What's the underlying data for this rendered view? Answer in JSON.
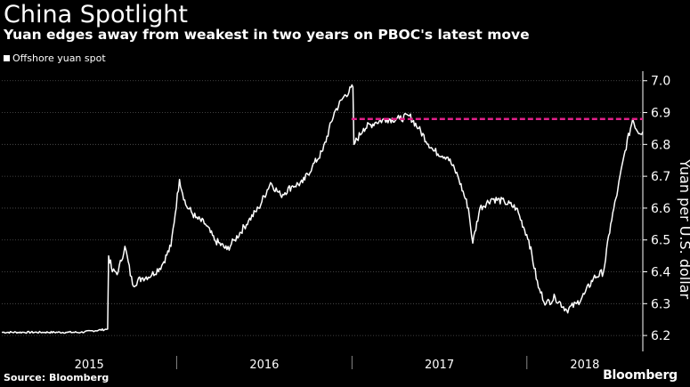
{
  "header": {
    "title": "China Spotlight",
    "subtitle": "Yuan edges away from weakest in two years on PBOC's latest move"
  },
  "footer": {
    "source": "Source: Bloomberg",
    "brand": "Bloomberg"
  },
  "colors": {
    "background": "#000000",
    "series": "#ffffff",
    "reference_line": "#e0218a",
    "grid": "#555555"
  },
  "chart_data": {
    "type": "line",
    "title": "China Spotlight",
    "subtitle": "Yuan edges away from weakest in two years on PBOC's latest move",
    "ylabel": "Yuan per U.S. dollar",
    "xlabel": "",
    "ylim": [
      6.15,
      7.03
    ],
    "yticks": [
      6.2,
      6.3,
      6.4,
      6.5,
      6.6,
      6.7,
      6.8,
      6.9,
      7.0
    ],
    "ytick_labels": [
      "6.2",
      "6.3",
      "6.4",
      "6.5",
      "6.6",
      "6.7",
      "6.8",
      "6.9",
      "7.0"
    ],
    "xlim": [
      "2015-01-01",
      "2018-08-31"
    ],
    "xtick_labels": [
      "2015",
      "2016",
      "2017",
      "2018"
    ],
    "y_axis_side": "right",
    "grid": "horizontal dotted",
    "legend_position": "top-left",
    "reference_line": {
      "style": "dashed",
      "value": 6.88,
      "from": "2016-12-31",
      "to": "2018-08-31"
    },
    "series": [
      {
        "name": "Offshore yuan spot",
        "points": [
          [
            "2015-01-01",
            6.21
          ],
          [
            "2015-02-15",
            6.21
          ],
          [
            "2015-04-01",
            6.21
          ],
          [
            "2015-05-15",
            6.21
          ],
          [
            "2015-06-15",
            6.21
          ],
          [
            "2015-08-10",
            6.22
          ],
          [
            "2015-08-12",
            6.45
          ],
          [
            "2015-08-20",
            6.4
          ],
          [
            "2015-09-01",
            6.4
          ],
          [
            "2015-09-15",
            6.48
          ],
          [
            "2015-10-01",
            6.36
          ],
          [
            "2015-10-20",
            6.38
          ],
          [
            "2015-11-10",
            6.39
          ],
          [
            "2015-12-01",
            6.42
          ],
          [
            "2015-12-20",
            6.48
          ],
          [
            "2016-01-07",
            6.69
          ],
          [
            "2016-01-20",
            6.61
          ],
          [
            "2016-02-10",
            6.57
          ],
          [
            "2016-03-01",
            6.55
          ],
          [
            "2016-03-20",
            6.5
          ],
          [
            "2016-04-15",
            6.47
          ],
          [
            "2016-05-01",
            6.5
          ],
          [
            "2016-05-30",
            6.56
          ],
          [
            "2016-06-20",
            6.6
          ],
          [
            "2016-07-15",
            6.68
          ],
          [
            "2016-08-05",
            6.64
          ],
          [
            "2016-08-30",
            6.67
          ],
          [
            "2016-09-20",
            6.68
          ],
          [
            "2016-10-10",
            6.73
          ],
          [
            "2016-11-01",
            6.78
          ],
          [
            "2016-11-25",
            6.9
          ],
          [
            "2016-12-15",
            6.95
          ],
          [
            "2017-01-03",
            6.98
          ],
          [
            "2017-01-05",
            6.8
          ],
          [
            "2017-01-25",
            6.85
          ],
          [
            "2017-02-20",
            6.87
          ],
          [
            "2017-03-15",
            6.88
          ],
          [
            "2017-04-10",
            6.88
          ],
          [
            "2017-05-01",
            6.89
          ],
          [
            "2017-05-20",
            6.85
          ],
          [
            "2017-06-20",
            6.78
          ],
          [
            "2017-07-20",
            6.76
          ],
          [
            "2017-08-10",
            6.7
          ],
          [
            "2017-09-01",
            6.6
          ],
          [
            "2017-09-10",
            6.49
          ],
          [
            "2017-09-25",
            6.6
          ],
          [
            "2017-10-20",
            6.63
          ],
          [
            "2017-11-15",
            6.62
          ],
          [
            "2017-12-10",
            6.6
          ],
          [
            "2018-01-05",
            6.5
          ],
          [
            "2018-01-25",
            6.35
          ],
          [
            "2018-02-10",
            6.3
          ],
          [
            "2018-03-01",
            6.32
          ],
          [
            "2018-03-25",
            6.28
          ],
          [
            "2018-04-15",
            6.3
          ],
          [
            "2018-05-01",
            6.33
          ],
          [
            "2018-05-20",
            6.38
          ],
          [
            "2018-06-10",
            6.4
          ],
          [
            "2018-06-25",
            6.55
          ],
          [
            "2018-07-10",
            6.66
          ],
          [
            "2018-07-25",
            6.78
          ],
          [
            "2018-08-10",
            6.88
          ],
          [
            "2018-08-20",
            6.84
          ],
          [
            "2018-08-31",
            6.84
          ]
        ]
      }
    ]
  }
}
